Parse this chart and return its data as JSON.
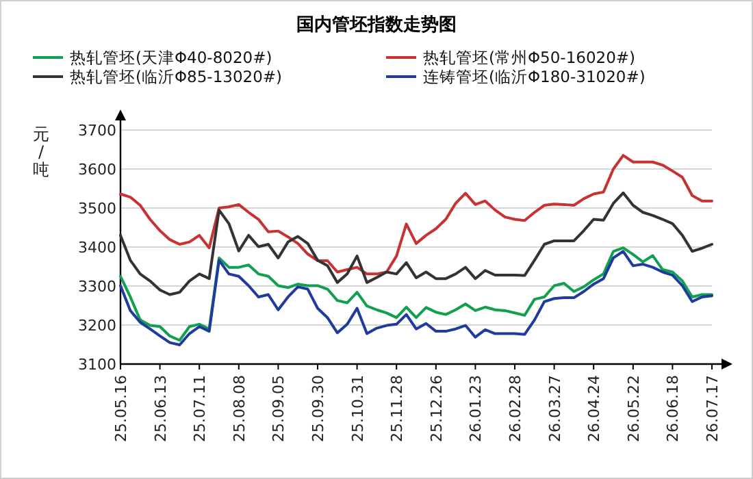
{
  "chart_data": {
    "type": "line",
    "title": "国内管坯指数走势图",
    "ylabel": "元/吨",
    "categories": [
      "25.05.16",
      null,
      null,
      null,
      "25.06.13",
      null,
      null,
      null,
      "25.07.11",
      null,
      null,
      null,
      "25.08.08",
      null,
      null,
      null,
      "25.09.05",
      null,
      null,
      null,
      "25.09.30",
      null,
      null,
      null,
      "25.10.31",
      null,
      null,
      null,
      "25.11.28",
      null,
      null,
      null,
      "25.12.26",
      null,
      null,
      null,
      "26.01.23",
      null,
      null,
      null,
      "26.02.28",
      null,
      null,
      null,
      "26.03.27",
      null,
      null,
      null,
      "26.04.24",
      null,
      null,
      null,
      "26.05.22",
      null,
      null,
      null,
      "26.06.18",
      null,
      null,
      null,
      "26.07.17"
    ],
    "series": [
      {
        "name": "热轧管坯(天津Φ40-8020#)",
        "color": "#10a050",
        "values": [
          3325,
          3272,
          3213,
          3199,
          3196,
          3172,
          3161,
          3196,
          3202,
          3190,
          3372,
          3348,
          3348,
          3354,
          3331,
          3325,
          3301,
          3296,
          3305,
          3301,
          3301,
          3292,
          3263,
          3257,
          3284,
          3249,
          3239,
          3231,
          3219,
          3246,
          3219,
          3245,
          3233,
          3227,
          3239,
          3254,
          3237,
          3246,
          3239,
          3237,
          3231,
          3225,
          3266,
          3272,
          3301,
          3307,
          3286,
          3298,
          3316,
          3331,
          3389,
          3398,
          3381,
          3362,
          3378,
          3342,
          3336,
          3313,
          3272,
          3278,
          3278
        ]
      },
      {
        "name": "热轧管坯(常州Φ50-16020#)",
        "color": "#c83232",
        "values": [
          3536,
          3528,
          3507,
          3471,
          3442,
          3419,
          3407,
          3413,
          3430,
          3398,
          3500,
          3503,
          3509,
          3489,
          3471,
          3439,
          3441,
          3426,
          3409,
          3382,
          3365,
          3365,
          3336,
          3342,
          3348,
          3331,
          3331,
          3336,
          3377,
          3459,
          3409,
          3430,
          3447,
          3471,
          3512,
          3538,
          3509,
          3518,
          3495,
          3477,
          3471,
          3468,
          3489,
          3507,
          3510,
          3509,
          3507,
          3524,
          3536,
          3541,
          3600,
          3635,
          3618,
          3618,
          3618,
          3610,
          3595,
          3579,
          3532,
          3518,
          3518
        ]
      },
      {
        "name": "热轧管坯(临沂Φ85-13020#)",
        "color": "#333333",
        "values": [
          3430,
          3366,
          3331,
          3313,
          3290,
          3278,
          3284,
          3313,
          3331,
          3319,
          3495,
          3460,
          3390,
          3430,
          3401,
          3407,
          3372,
          3413,
          3427,
          3409,
          3366,
          3352,
          3309,
          3331,
          3377,
          3309,
          3322,
          3336,
          3331,
          3360,
          3321,
          3336,
          3319,
          3319,
          3331,
          3348,
          3319,
          3340,
          3328,
          3328,
          3328,
          3327,
          3366,
          3407,
          3416,
          3416,
          3416,
          3442,
          3471,
          3469,
          3512,
          3539,
          3507,
          3489,
          3481,
          3471,
          3460,
          3430,
          3389,
          3397,
          3407
        ]
      },
      {
        "name": "连铸管坯(临沂Φ180-31020#)",
        "color": "#1f3c9c",
        "values": [
          3301,
          3237,
          3207,
          3190,
          3172,
          3155,
          3149,
          3178,
          3196,
          3184,
          3366,
          3331,
          3325,
          3301,
          3272,
          3278,
          3239,
          3272,
          3298,
          3292,
          3243,
          3219,
          3180,
          3202,
          3243,
          3178,
          3192,
          3199,
          3202,
          3227,
          3190,
          3204,
          3184,
          3184,
          3190,
          3199,
          3169,
          3188,
          3178,
          3178,
          3178,
          3176,
          3213,
          3260,
          3268,
          3270,
          3270,
          3286,
          3305,
          3319,
          3372,
          3389,
          3352,
          3356,
          3348,
          3336,
          3328,
          3301,
          3260,
          3272,
          3275
        ]
      }
    ],
    "ylim": [
      3100,
      3700
    ],
    "yticks": [
      3100,
      3200,
      3300,
      3400,
      3500,
      3600,
      3700
    ],
    "grid": "y",
    "legend": "top"
  }
}
